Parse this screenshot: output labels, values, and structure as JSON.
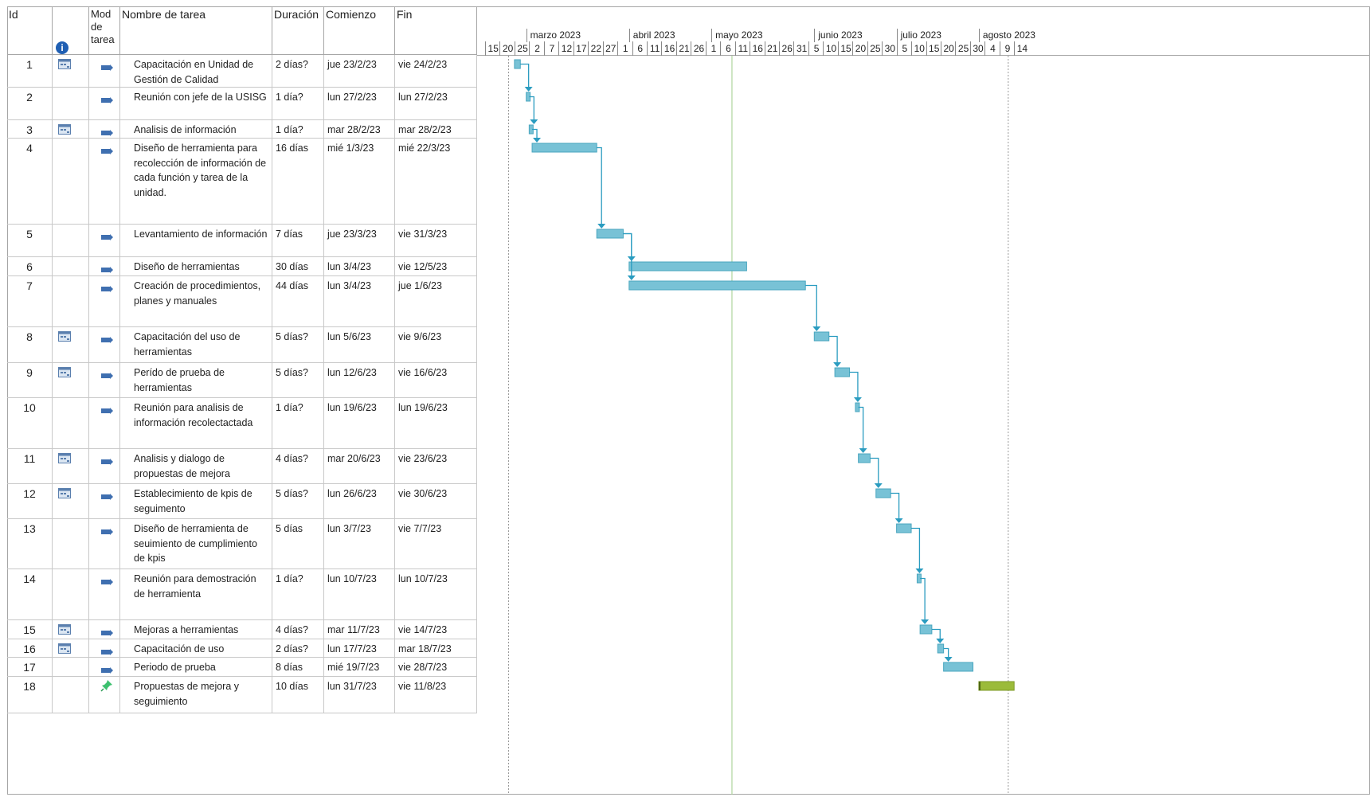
{
  "columns": {
    "id": "Id",
    "mode": "Mod de tarea",
    "name": "Nombre de tarea",
    "duration": "Duración",
    "start": "Comienzo",
    "end": "Fin"
  },
  "colors": {
    "bar": "#78c2d6",
    "bar_manual": "#9bbb3a",
    "link": "#2a9cc0",
    "today_line": "#9fcc8a"
  },
  "timeline": {
    "months": [
      "marzo 2023",
      "abril 2023",
      "mayo 2023",
      "junio 2023",
      "julio 2023",
      "agosto 2023"
    ],
    "ticks": [
      "15",
      "20",
      "25",
      "2",
      "7",
      "12",
      "17",
      "22",
      "27",
      "1",
      "6",
      "11",
      "16",
      "21",
      "26",
      "1",
      "6",
      "11",
      "16",
      "21",
      "26",
      "31",
      "5",
      "10",
      "15",
      "20",
      "25",
      "30",
      "5",
      "10",
      "15",
      "20",
      "25",
      "30",
      "4",
      "9",
      "14"
    ]
  },
  "tasks": [
    {
      "id": "1",
      "name": "Capacitación en Unidad de Gestión de Calidad",
      "duration": "2 días?",
      "start": "jue 23/2/23",
      "end": "vie 24/2/23",
      "calendar": true,
      "mode": "auto",
      "start_date": "2023-02-23",
      "end_date": "2023-02-24"
    },
    {
      "id": "2",
      "name": "Reunión con jefe de la USISG",
      "duration": "1 día?",
      "start": "lun 27/2/23",
      "end": "lun 27/2/23",
      "calendar": false,
      "mode": "auto",
      "start_date": "2023-02-27",
      "end_date": "2023-02-27"
    },
    {
      "id": "3",
      "name": "Analisis de información",
      "duration": "1 día?",
      "start": "mar 28/2/23",
      "end": "mar 28/2/23",
      "calendar": true,
      "mode": "auto",
      "start_date": "2023-02-28",
      "end_date": "2023-02-28"
    },
    {
      "id": "4",
      "name": "Diseño de herramienta para recolección de información de cada función y tarea de la unidad.",
      "duration": "16 días",
      "start": "mié 1/3/23",
      "end": "mié 22/3/23",
      "calendar": false,
      "mode": "auto",
      "start_date": "2023-03-01",
      "end_date": "2023-03-22"
    },
    {
      "id": "5",
      "name": "Levantamiento de información",
      "duration": "7 días",
      "start": "jue 23/3/23",
      "end": "vie 31/3/23",
      "calendar": false,
      "mode": "auto",
      "start_date": "2023-03-23",
      "end_date": "2023-03-31"
    },
    {
      "id": "6",
      "name": "Diseño de herramientas",
      "duration": "30 días",
      "start": "lun 3/4/23",
      "end": "vie 12/5/23",
      "calendar": false,
      "mode": "auto",
      "start_date": "2023-04-03",
      "end_date": "2023-05-12"
    },
    {
      "id": "7",
      "name": "Creación de procedimientos, planes y manuales",
      "duration": "44 días",
      "start": "lun 3/4/23",
      "end": "jue 1/6/23",
      "calendar": false,
      "mode": "auto",
      "start_date": "2023-04-03",
      "end_date": "2023-06-01"
    },
    {
      "id": "8",
      "name": "Capacitación del uso de herramientas",
      "duration": "5 días?",
      "start": "lun 5/6/23",
      "end": "vie 9/6/23",
      "calendar": true,
      "mode": "auto",
      "start_date": "2023-06-05",
      "end_date": "2023-06-09"
    },
    {
      "id": "9",
      "name": "Perído de prueba de herramientas",
      "duration": "5 días?",
      "start": "lun 12/6/23",
      "end": "vie 16/6/23",
      "calendar": true,
      "mode": "auto",
      "start_date": "2023-06-12",
      "end_date": "2023-06-16"
    },
    {
      "id": "10",
      "name": "Reunión para analisis de información recolectactada",
      "duration": "1 día?",
      "start": "lun 19/6/23",
      "end": "lun 19/6/23",
      "calendar": false,
      "mode": "auto",
      "start_date": "2023-06-19",
      "end_date": "2023-06-19"
    },
    {
      "id": "11",
      "name": "Analisis y dialogo de propuestas de mejora",
      "duration": "4 días?",
      "start": "mar 20/6/23",
      "end": "vie 23/6/23",
      "calendar": true,
      "mode": "auto",
      "start_date": "2023-06-20",
      "end_date": "2023-06-23"
    },
    {
      "id": "12",
      "name": "Establecimiento de kpis de seguimento",
      "duration": "5 días?",
      "start": "lun 26/6/23",
      "end": "vie 30/6/23",
      "calendar": true,
      "mode": "auto",
      "start_date": "2023-06-26",
      "end_date": "2023-06-30"
    },
    {
      "id": "13",
      "name": "Diseño de herramienta de seuimiento de cumplimiento de kpis",
      "duration": "5 días",
      "start": "lun 3/7/23",
      "end": "vie 7/7/23",
      "calendar": false,
      "mode": "auto",
      "start_date": "2023-07-03",
      "end_date": "2023-07-07"
    },
    {
      "id": "14",
      "name": "Reunión para demostración de herramienta",
      "duration": "1 día?",
      "start": "lun 10/7/23",
      "end": "lun 10/7/23",
      "calendar": false,
      "mode": "auto",
      "start_date": "2023-07-10",
      "end_date": "2023-07-10"
    },
    {
      "id": "15",
      "name": "Mejoras a herramientas",
      "duration": "4 días?",
      "start": "mar 11/7/23",
      "end": "vie 14/7/23",
      "calendar": true,
      "mode": "auto",
      "start_date": "2023-07-11",
      "end_date": "2023-07-14"
    },
    {
      "id": "16",
      "name": "Capacitación de uso",
      "duration": "2 días?",
      "start": "lun 17/7/23",
      "end": "mar 18/7/23",
      "calendar": true,
      "mode": "auto",
      "start_date": "2023-07-17",
      "end_date": "2023-07-18"
    },
    {
      "id": "17",
      "name": "Periodo de prueba",
      "duration": "8 días",
      "start": "mié 19/7/23",
      "end": "vie 28/7/23",
      "calendar": false,
      "mode": "auto",
      "start_date": "2023-07-19",
      "end_date": "2023-07-28"
    },
    {
      "id": "18",
      "name": "Propuestas de mejora y seguimiento",
      "duration": "10 días",
      "start": "lun 31/7/23",
      "end": "vie 11/8/23",
      "calendar": false,
      "mode": "manual",
      "start_date": "2023-07-31",
      "end_date": "2023-08-11"
    }
  ]
}
